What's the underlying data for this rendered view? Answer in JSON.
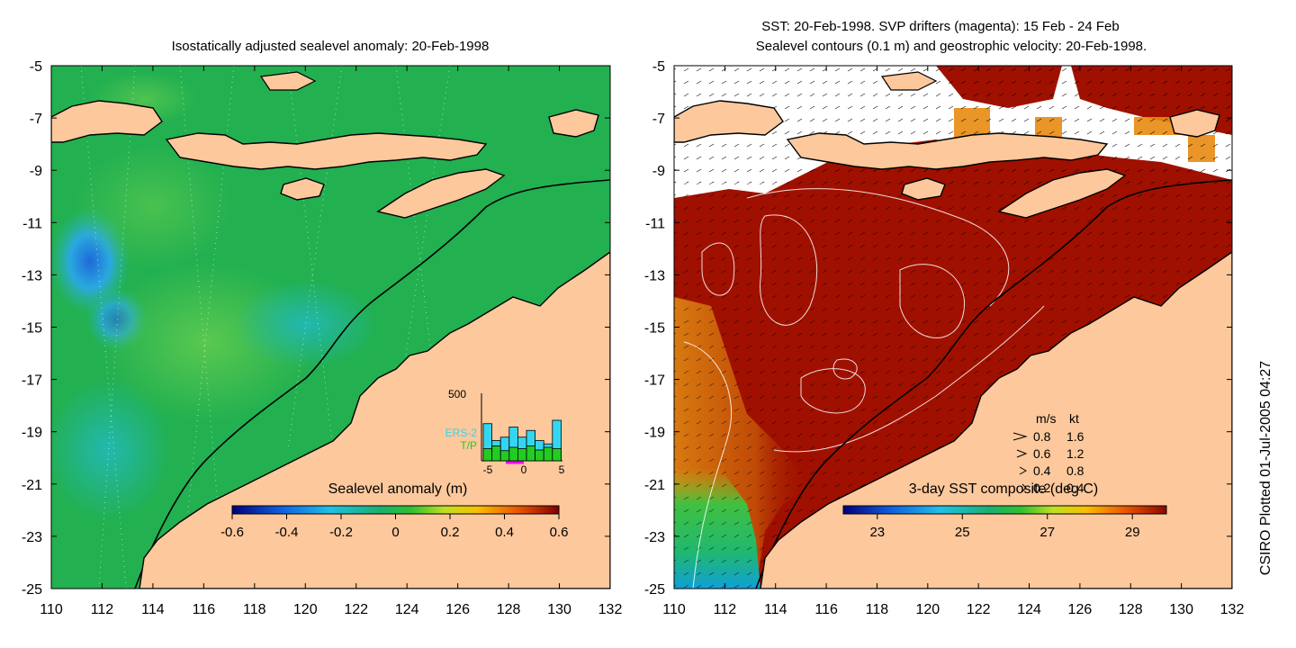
{
  "left_panel": {
    "title": "Isostatically adjusted sealevel anomaly: 20-Feb-1998",
    "colorbar": {
      "label": "Sealevel anomaly (m)",
      "ticks": [
        "-0.6",
        "-0.4",
        "-0.2",
        "0",
        "0.2",
        "0.4",
        "0.6"
      ],
      "range": [
        -0.6,
        0.6
      ]
    },
    "inset": {
      "ymax_label": "500",
      "legend": [
        "ERS-2",
        "T/P"
      ],
      "legend_colors": [
        "#33d6f0",
        "#22cc22"
      ],
      "xticks": [
        "-5",
        "0",
        "5"
      ],
      "ers2_counts": [
        0.55,
        0.3,
        0.35,
        0.5,
        0.35,
        0.45,
        0.3,
        0.25,
        0.6
      ],
      "tp_counts": [
        0.18,
        0.22,
        0.15,
        0.2,
        0.18,
        0.22,
        0.16,
        0.2,
        0.18
      ]
    }
  },
  "right_panel": {
    "title_line1": "SST: 20-Feb-1998. SVP drifters (magenta): 15 Feb - 24 Feb",
    "title_line2": "Sealevel contours (0.1 m) and geostrophic velocity: 20-Feb-1998.",
    "colorbar": {
      "label": "3-day SST composite (deg C)",
      "ticks": [
        "23",
        "25",
        "27",
        "29"
      ],
      "range": [
        22.2,
        29.8
      ]
    },
    "velocity_legend": {
      "header_ms": "m/s",
      "header_kt": "kt",
      "rows": [
        {
          "ms": "0.8",
          "kt": "1.6"
        },
        {
          "ms": "0.6",
          "kt": "1.2"
        },
        {
          "ms": "0.4",
          "kt": "0.8"
        },
        {
          "ms": "0.2",
          "kt": "0.4"
        }
      ]
    }
  },
  "axes": {
    "lon_ticks": [
      "110",
      "112",
      "114",
      "116",
      "118",
      "120",
      "122",
      "124",
      "126",
      "128",
      "130",
      "132"
    ],
    "lat_ticks": [
      "-5",
      "-7",
      "-9",
      "-11",
      "-13",
      "-15",
      "-17",
      "-19",
      "-21",
      "-23",
      "-25"
    ],
    "lon_range": [
      110,
      132
    ],
    "lat_range": [
      -25,
      -5
    ]
  },
  "credit": "CSIRO Plotted 01-Jul-2005 04:27",
  "colors": {
    "land": "#fcc89c",
    "sea_anomaly": "#22b050",
    "sst_warm": "#a01000"
  }
}
